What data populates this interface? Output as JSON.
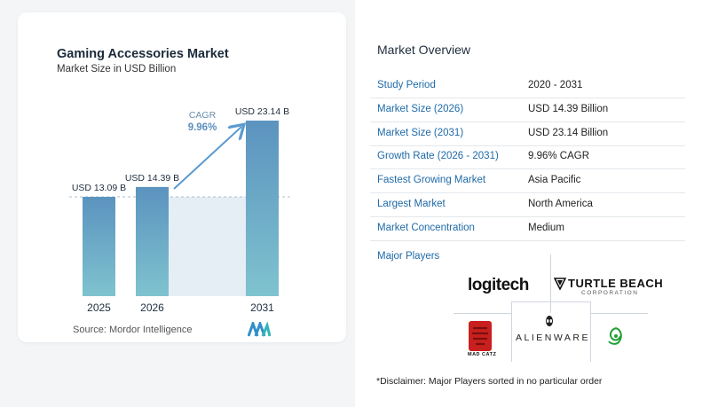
{
  "chart": {
    "title": "Gaming Accessories Market",
    "subtitle": "Market Size in USD Billion",
    "cagr_label": "CAGR",
    "cagr_value": "9.96%",
    "source": "Source:  Mordor Intelligence"
  },
  "chart_data": {
    "type": "bar",
    "categories": [
      "2025",
      "2026",
      "2031"
    ],
    "values": [
      13.09,
      14.39,
      23.14
    ],
    "data_labels": [
      "USD 13.09 B",
      "USD 14.39 B",
      "USD 23.14 B"
    ],
    "title": "Gaming Accessories Market",
    "subtitle": "Market Size in USD Billion",
    "xlabel": "",
    "ylabel": "",
    "grid": false
  },
  "overview": {
    "title": "Market Overview",
    "rows": [
      {
        "key": "Study Period",
        "value": "2020 - 2031"
      },
      {
        "key": "Market Size (2026)",
        "value": "USD 14.39 Billion"
      },
      {
        "key": "Market Size (2031)",
        "value": "USD 23.14 Billion"
      },
      {
        "key": "Growth Rate (2026 - 2031)",
        "value": "9.96% CAGR"
      },
      {
        "key": "Fastest Growing Market",
        "value": "Asia Pacific"
      },
      {
        "key": "Largest Market",
        "value": "North America"
      },
      {
        "key": "Market Concentration",
        "value": "Medium"
      }
    ],
    "players_label": "Major Players",
    "disclaimer": "*Disclaimer: Major Players sorted in no particular order"
  },
  "players": {
    "logitech": "logitech",
    "turtle_beach": "TURTLE BEACH",
    "turtle_beach_sub": "CORPORATION",
    "alienware": "ALIENWARE",
    "madcatz": "MAD CATZ"
  },
  "colors": {
    "bar_top": "#5b93bf",
    "bar_bottom": "#7fc3cf",
    "growth_area": "#e6eef5",
    "arrow": "#5b9bd0",
    "key_text": "#1e6aa7"
  }
}
